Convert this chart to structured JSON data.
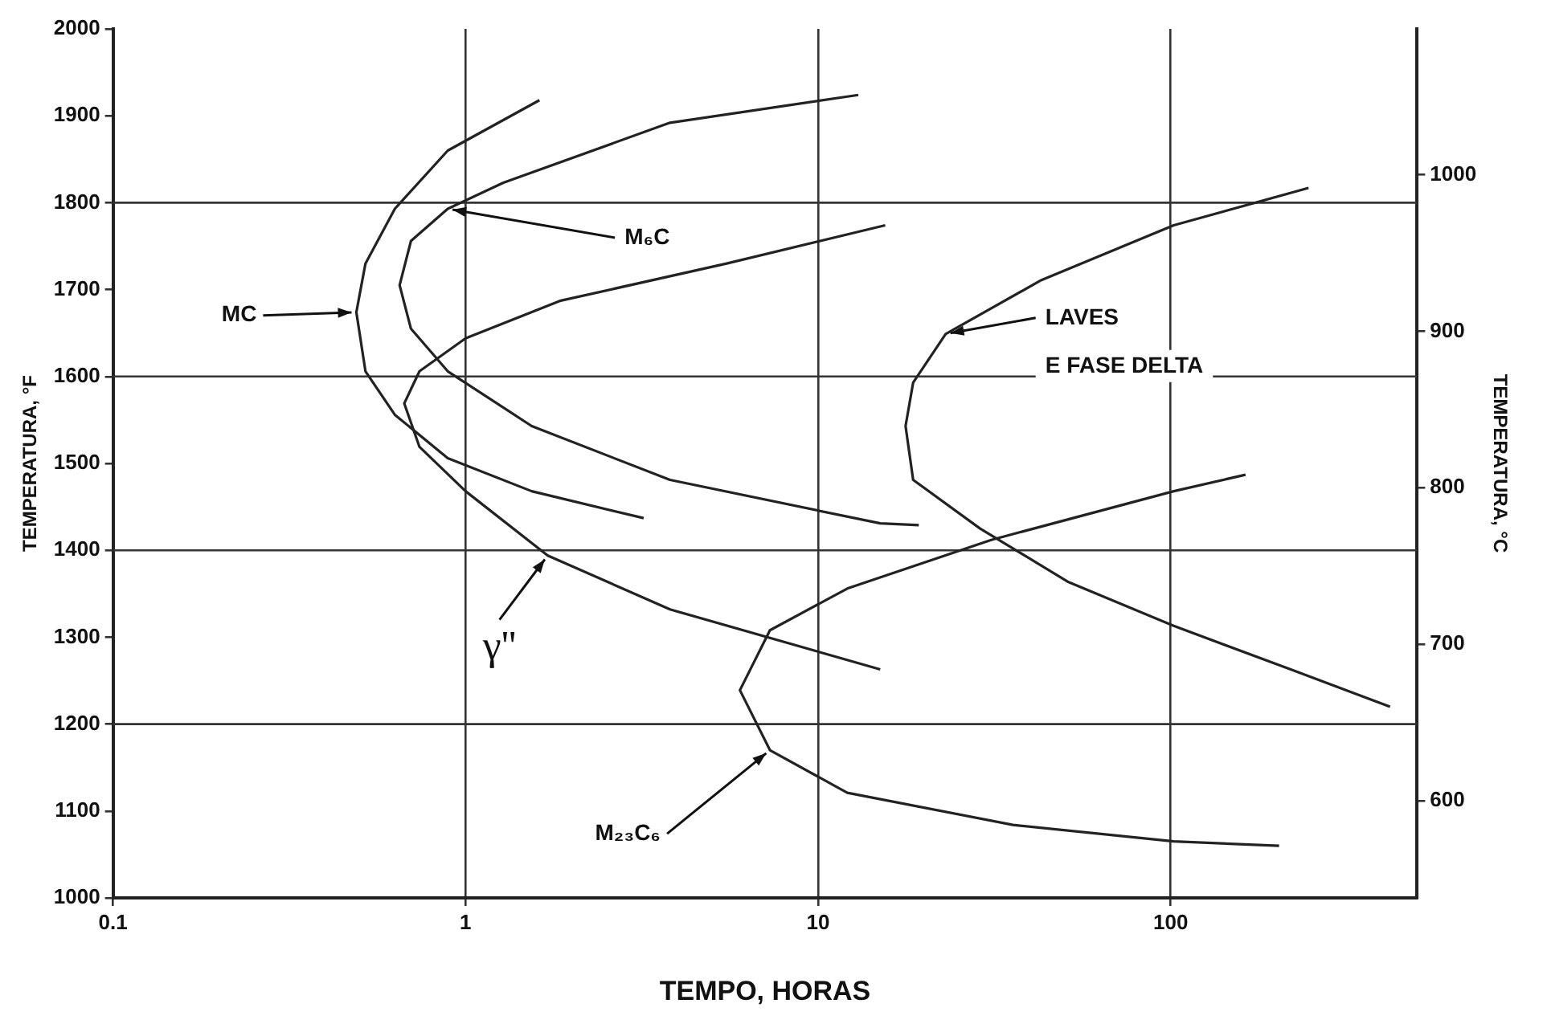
{
  "chart_data": {
    "type": "line",
    "xlabel": "TEMPO, HORAS",
    "ylabel": "TEMPERATURA, °F",
    "y2label": "TEMPERATURA, °C",
    "log": "x",
    "grid": "x",
    "legend": false,
    "marker": "none",
    "line_style": "solid",
    "xlim": [
      0.1,
      500
    ],
    "xticks": [
      0.1,
      1,
      10,
      100
    ],
    "ylim": [
      1000,
      2000
    ],
    "yticks": [
      1000,
      1100,
      1200,
      1300,
      1400,
      1500,
      1600,
      1700,
      1800,
      1900,
      2000
    ],
    "y2lim": [
      537.8,
      1093.3
    ],
    "y2ticks": [
      600,
      700,
      800,
      900,
      1000
    ],
    "series": [
      {
        "color": "#222222",
        "x": [
          1.62,
          0.89,
          0.63,
          0.52,
          0.49,
          0.52,
          0.63,
          0.89,
          1.54,
          3.2
        ],
        "values": [
          1918,
          1860,
          1793,
          1730,
          1674,
          1606,
          1556,
          1506,
          1468,
          1437
        ]
      },
      {
        "color": "#222222",
        "x": [
          13,
          3.8,
          1.28,
          0.89,
          0.7,
          0.65,
          0.7,
          0.89,
          1.54,
          3.8,
          15,
          19.3
        ],
        "values": [
          1924,
          1892,
          1823,
          1793,
          1756,
          1705,
          1655,
          1606,
          1543,
          1481,
          1431,
          1429
        ]
      },
      {
        "color": "#222222",
        "x": [
          15.5,
          5.5,
          1.85,
          1.0,
          0.74,
          0.67,
          0.74,
          1.0,
          1.71,
          3.8,
          15
        ],
        "values": [
          1774,
          1730,
          1687,
          1644,
          1606,
          1569,
          1519,
          1468,
          1394,
          1332,
          1263
        ]
      },
      {
        "color": "#222222",
        "x": [
          246,
          102,
          43,
          23,
          18.6,
          17.7,
          18.6,
          28.8,
          51,
          102,
          219,
          419
        ],
        "values": [
          1817,
          1774,
          1711,
          1649,
          1593,
          1543,
          1481,
          1425,
          1364,
          1313,
          1263,
          1220
        ]
      },
      {
        "color": "#222222",
        "x": [
          163,
          102,
          31,
          12.1,
          7.3,
          6.0,
          7.3,
          12.1,
          35.7,
          102,
          203
        ],
        "values": [
          1487,
          1468,
          1412,
          1356,
          1308,
          1239,
          1170,
          1121,
          1084,
          1065,
          1060
        ]
      }
    ],
    "ref_lines": [
      {
        "axis": "y",
        "value": 1200,
        "color": "#333333"
      },
      {
        "axis": "y",
        "value": 1400,
        "color": "#333333"
      },
      {
        "axis": "y",
        "value": 1600,
        "color": "#333333"
      },
      {
        "axis": "y",
        "value": 1800,
        "color": "#333333"
      }
    ],
    "annotations": [
      {
        "text": "MC",
        "x": 0.49,
        "y": 1674
      },
      {
        "text": "M₆C",
        "x": 0.89,
        "y": 1793
      },
      {
        "text": "γ''",
        "x": 1.71,
        "y": 1394
      },
      {
        "text": "LAVES\nE FASE DELTA",
        "x": 23,
        "y": 1649
      },
      {
        "text": "M₂₃C₆",
        "x": 7.3,
        "y": 1170
      }
    ]
  }
}
